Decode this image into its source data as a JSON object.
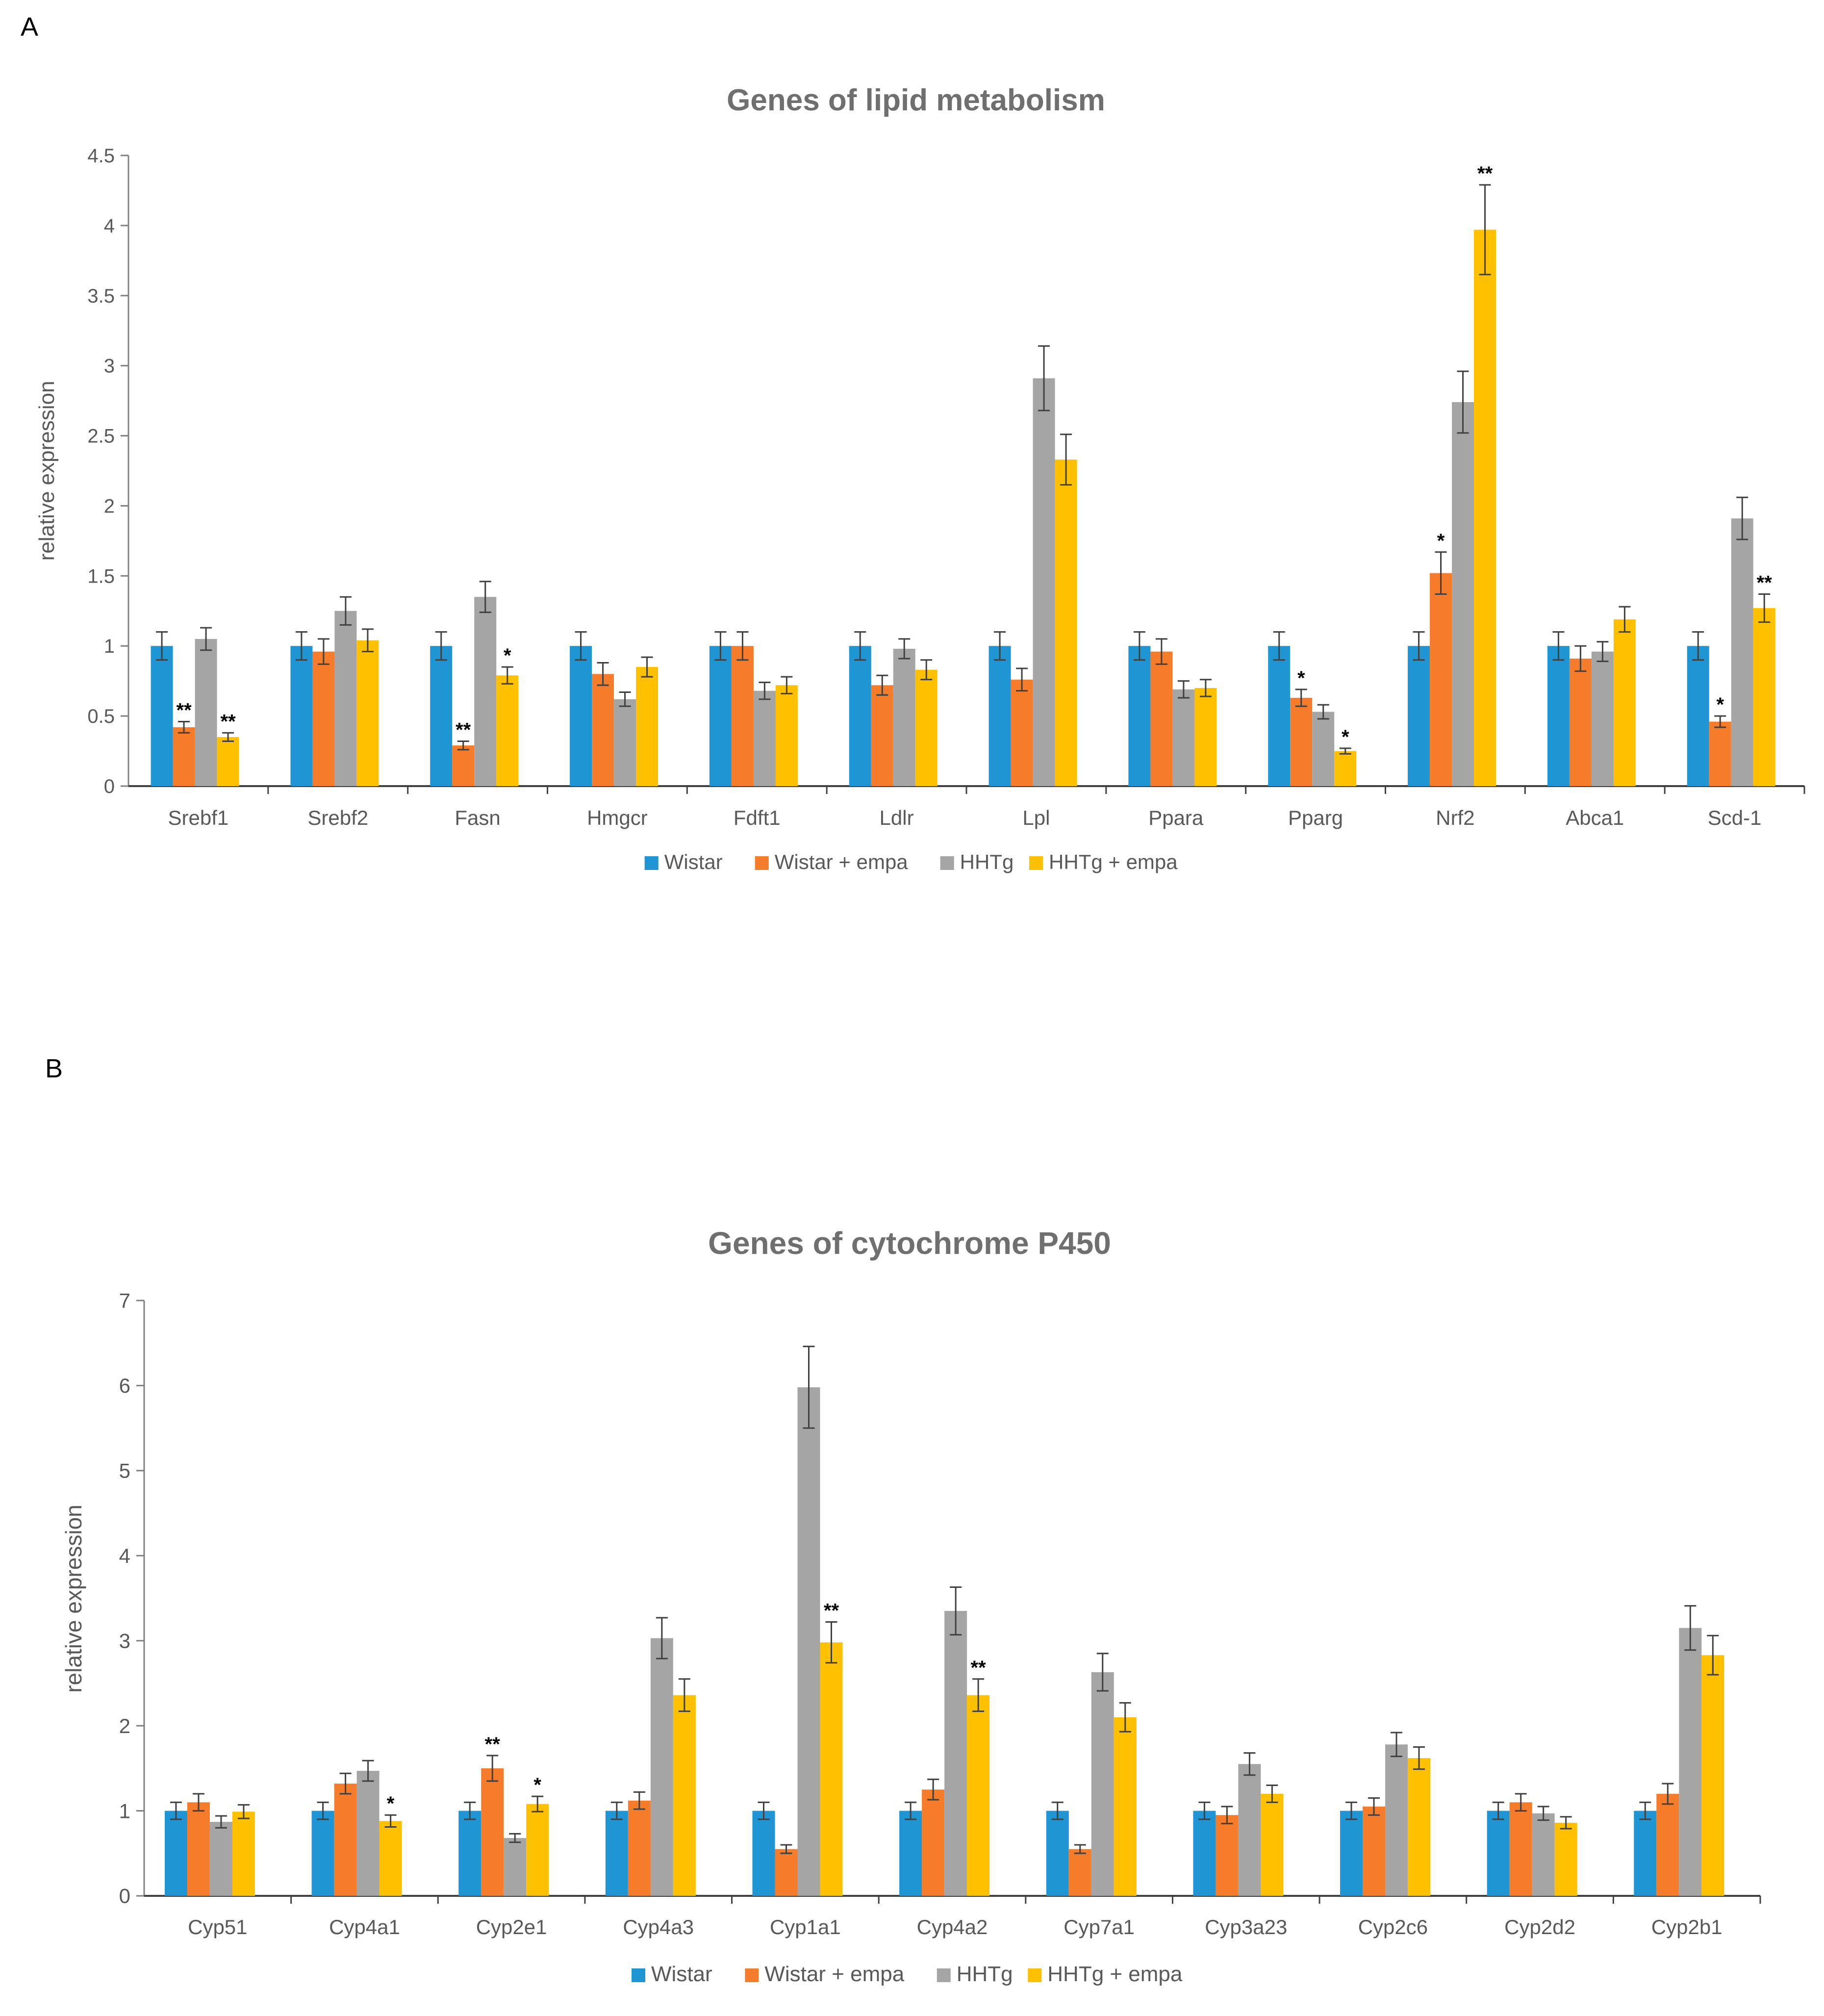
{
  "panel_labels": [
    "A",
    "B"
  ],
  "chart_data": [
    {
      "type": "bar",
      "title": "Genes of lipid metabolism",
      "ylabel": "relative expression",
      "ylim": [
        0,
        4.5
      ],
      "yticks": [
        "0",
        "0.5",
        "1",
        "1.5",
        "2",
        "2.5",
        "3",
        "3.5",
        "4",
        "4.5"
      ],
      "categories": [
        "Srebf1",
        "Srebf2",
        "Fasn",
        "Hmgcr",
        "Fdft1",
        "Ldlr",
        "Lpl",
        "Ppara",
        "Pparg",
        "Nrf2",
        "Abca1",
        "Scd-1"
      ],
      "series": [
        {
          "name": "Wistar",
          "color": "#1f96d3",
          "values": [
            1,
            1,
            1,
            1,
            1,
            1,
            1,
            1,
            1,
            1,
            1,
            1
          ],
          "errors": [
            0.1,
            0.1,
            0.1,
            0.1,
            0.1,
            0.1,
            0.1,
            0.1,
            0.1,
            0.1,
            0.1,
            0.1
          ],
          "sig": [
            "",
            "",
            "",
            "",
            "",
            "",
            "",
            "",
            "",
            "",
            "",
            ""
          ]
        },
        {
          "name": "Wistar + empa",
          "color": "#f47c2a",
          "values": [
            0.42,
            0.96,
            0.29,
            0.8,
            1.0,
            0.72,
            0.76,
            0.96,
            0.63,
            1.52,
            0.91,
            0.46
          ],
          "errors": [
            0.04,
            0.09,
            0.03,
            0.08,
            0.1,
            0.07,
            0.08,
            0.09,
            0.06,
            0.15,
            0.09,
            0.04
          ],
          "sig": [
            "**",
            "",
            "**",
            "",
            "",
            "",
            "",
            "",
            "*",
            "*",
            "",
            "*"
          ]
        },
        {
          "name": "HHTg",
          "color": "#a5a5a5",
          "values": [
            1.05,
            1.25,
            1.35,
            0.62,
            0.68,
            0.98,
            2.91,
            0.69,
            0.53,
            2.74,
            0.96,
            1.91
          ],
          "errors": [
            0.08,
            0.1,
            0.11,
            0.05,
            0.06,
            0.07,
            0.23,
            0.06,
            0.05,
            0.22,
            0.07,
            0.15
          ],
          "sig": [
            "",
            "",
            "",
            "",
            "",
            "",
            "",
            "",
            "",
            "",
            "",
            ""
          ]
        },
        {
          "name": "HHTg + empa",
          "color": "#ffc000",
          "values": [
            0.35,
            1.04,
            0.79,
            0.85,
            0.72,
            0.83,
            2.33,
            0.7,
            0.25,
            3.97,
            1.19,
            1.27
          ],
          "errors": [
            0.03,
            0.08,
            0.06,
            0.07,
            0.06,
            0.07,
            0.18,
            0.06,
            0.02,
            0.32,
            0.09,
            0.1
          ],
          "sig": [
            "**",
            "",
            "*",
            "",
            "",
            "",
            "",
            "",
            "*",
            "**",
            "",
            "**"
          ]
        }
      ]
    },
    {
      "type": "bar",
      "title": "Genes of cytochrome P450",
      "ylabel": "relative expression",
      "ylim": [
        0,
        7
      ],
      "yticks": [
        "0",
        "1",
        "2",
        "3",
        "4",
        "5",
        "6",
        "7"
      ],
      "categories": [
        "Cyp51",
        "Cyp4a1",
        "Cyp2e1",
        "Cyp4a3",
        "Cyp1a1",
        "Cyp4a2",
        "Cyp7a1",
        "Cyp3a23",
        "Cyp2c6",
        "Cyp2d2",
        "Cyp2b1"
      ],
      "series": [
        {
          "name": "Wistar",
          "color": "#1f96d3",
          "values": [
            1,
            1,
            1,
            1,
            1,
            1,
            1,
            1,
            1,
            1,
            1
          ],
          "errors": [
            0.1,
            0.1,
            0.1,
            0.1,
            0.1,
            0.1,
            0.1,
            0.1,
            0.1,
            0.1,
            0.1
          ],
          "sig": [
            "",
            "",
            "",
            "",
            "",
            "",
            "",
            "",
            "",
            "",
            ""
          ]
        },
        {
          "name": "Wistar + empa",
          "color": "#f47c2a",
          "values": [
            1.1,
            1.32,
            1.5,
            1.12,
            0.55,
            1.25,
            0.55,
            0.95,
            1.05,
            1.1,
            1.2
          ],
          "errors": [
            0.1,
            0.12,
            0.15,
            0.1,
            0.05,
            0.12,
            0.05,
            0.1,
            0.1,
            0.1,
            0.12
          ],
          "sig": [
            "",
            "",
            "**",
            "",
            "",
            "",
            "",
            "",
            "",
            "",
            ""
          ]
        },
        {
          "name": "HHTg",
          "color": "#a5a5a5",
          "values": [
            0.87,
            1.47,
            0.68,
            3.03,
            5.98,
            3.35,
            2.63,
            1.55,
            1.78,
            0.97,
            3.15
          ],
          "errors": [
            0.07,
            0.12,
            0.05,
            0.24,
            0.48,
            0.28,
            0.22,
            0.13,
            0.14,
            0.08,
            0.26
          ],
          "sig": [
            "",
            "",
            "",
            "",
            "",
            "",
            "",
            "",
            "",
            "",
            ""
          ]
        },
        {
          "name": "HHTg + empa",
          "color": "#ffc000",
          "values": [
            0.99,
            0.88,
            1.08,
            2.36,
            2.98,
            2.36,
            2.1,
            1.2,
            1.62,
            0.86,
            2.83
          ],
          "errors": [
            0.08,
            0.07,
            0.09,
            0.19,
            0.24,
            0.19,
            0.17,
            0.1,
            0.13,
            0.07,
            0.23
          ],
          "sig": [
            "",
            "*",
            "*",
            "",
            "**",
            "**",
            "",
            "",
            "",
            "",
            ""
          ]
        }
      ]
    }
  ]
}
